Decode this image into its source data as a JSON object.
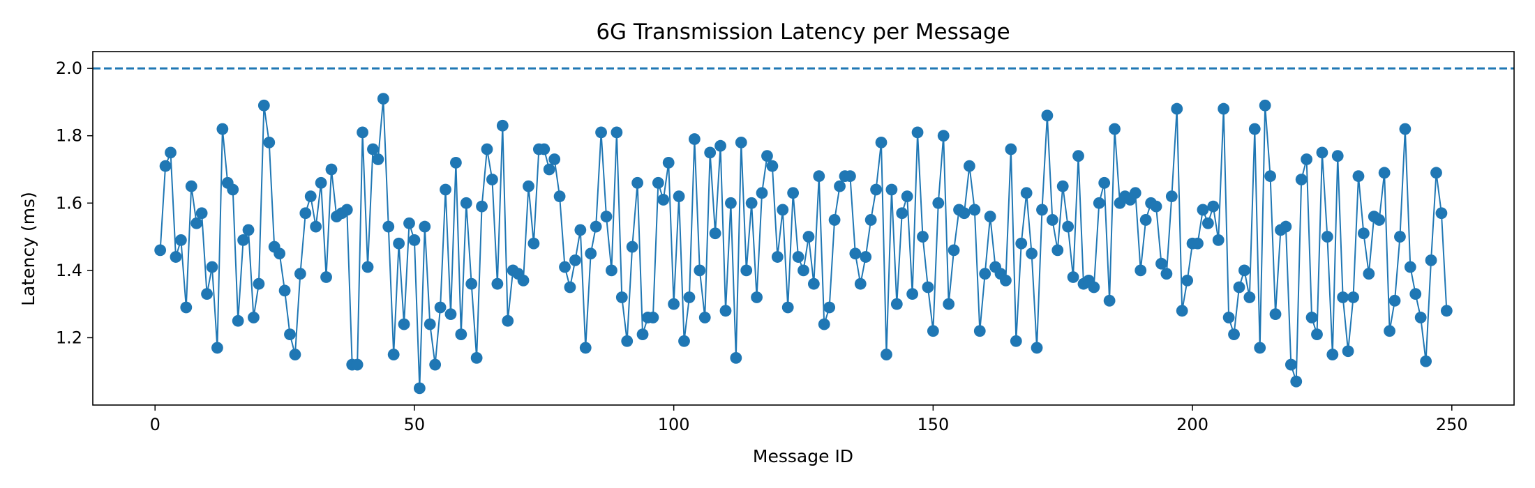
{
  "chart_data": {
    "type": "line",
    "title": "6G Transmission Latency per Message",
    "xlabel": "Message ID",
    "ylabel": "Latency (ms)",
    "xlim": [
      -12,
      262
    ],
    "ylim": [
      1.0,
      2.05
    ],
    "x_ticks": [
      0,
      50,
      100,
      150,
      200,
      250
    ],
    "y_ticks": [
      1.2,
      1.4,
      1.6,
      1.8,
      2.0
    ],
    "y_tick_labels": [
      "1.2",
      "1.4",
      "1.6",
      "1.8",
      "2.0"
    ],
    "grid": false,
    "legend": "none",
    "threshold": {
      "y": 2.0,
      "style": "dashed"
    },
    "series": [
      {
        "color": "#1f77b4",
        "marker": "circle",
        "x_start": 1,
        "values": [
          1.46,
          1.71,
          1.75,
          1.44,
          1.49,
          1.29,
          1.65,
          1.54,
          1.57,
          1.33,
          1.41,
          1.17,
          1.82,
          1.66,
          1.64,
          1.25,
          1.49,
          1.52,
          1.26,
          1.36,
          1.89,
          1.78,
          1.47,
          1.45,
          1.34,
          1.21,
          1.15,
          1.39,
          1.57,
          1.62,
          1.53,
          1.66,
          1.38,
          1.7,
          1.56,
          1.57,
          1.58,
          1.12,
          1.12,
          1.81,
          1.41,
          1.76,
          1.73,
          1.91,
          1.53,
          1.15,
          1.48,
          1.24,
          1.54,
          1.49,
          1.05,
          1.53,
          1.24,
          1.12,
          1.29,
          1.64,
          1.27,
          1.72,
          1.21,
          1.6,
          1.36,
          1.14,
          1.59,
          1.76,
          1.67,
          1.36,
          1.83,
          1.25,
          1.4,
          1.39,
          1.37,
          1.65,
          1.48,
          1.76,
          1.76,
          1.7,
          1.73,
          1.62,
          1.41,
          1.35,
          1.43,
          1.52,
          1.17,
          1.45,
          1.53,
          1.81,
          1.56,
          1.4,
          1.81,
          1.32,
          1.19,
          1.47,
          1.66,
          1.21,
          1.26,
          1.26,
          1.66,
          1.61,
          1.72,
          1.3,
          1.62,
          1.19,
          1.32,
          1.79,
          1.4,
          1.26,
          1.75,
          1.51,
          1.77,
          1.28,
          1.6,
          1.14,
          1.78,
          1.4,
          1.6,
          1.32,
          1.63,
          1.74,
          1.71,
          1.44,
          1.58,
          1.29,
          1.63,
          1.44,
          1.4,
          1.5,
          1.36,
          1.68,
          1.24,
          1.29,
          1.55,
          1.65,
          1.68,
          1.68,
          1.45,
          1.36,
          1.44,
          1.55,
          1.64,
          1.78,
          1.15,
          1.64,
          1.3,
          1.57,
          1.62,
          1.33,
          1.81,
          1.5,
          1.35,
          1.22,
          1.6,
          1.8,
          1.3,
          1.46,
          1.58,
          1.57,
          1.71,
          1.58,
          1.22,
          1.39,
          1.56,
          1.41,
          1.39,
          1.37,
          1.76,
          1.19,
          1.48,
          1.63,
          1.45,
          1.17,
          1.58,
          1.86,
          1.55,
          1.46,
          1.65,
          1.53,
          1.38,
          1.74,
          1.36,
          1.37,
          1.35,
          1.6,
          1.66,
          1.31,
          1.82,
          1.6,
          1.62,
          1.61,
          1.63,
          1.4,
          1.55,
          1.6,
          1.59,
          1.42,
          1.39,
          1.62,
          1.88,
          1.28,
          1.37,
          1.48,
          1.48,
          1.58,
          1.54,
          1.59,
          1.49,
          1.88,
          1.26,
          1.21,
          1.35,
          1.4,
          1.32,
          1.82,
          1.17,
          1.89,
          1.68,
          1.27,
          1.52,
          1.53,
          1.12,
          1.07,
          1.67,
          1.73,
          1.26,
          1.21,
          1.75,
          1.5,
          1.15,
          1.74,
          1.32,
          1.16,
          1.32,
          1.68,
          1.51,
          1.39,
          1.56,
          1.55,
          1.69,
          1.22,
          1.31,
          1.5,
          1.82,
          1.41,
          1.33,
          1.26,
          1.13,
          1.43,
          1.69,
          1.57,
          1.28
        ]
      }
    ]
  }
}
